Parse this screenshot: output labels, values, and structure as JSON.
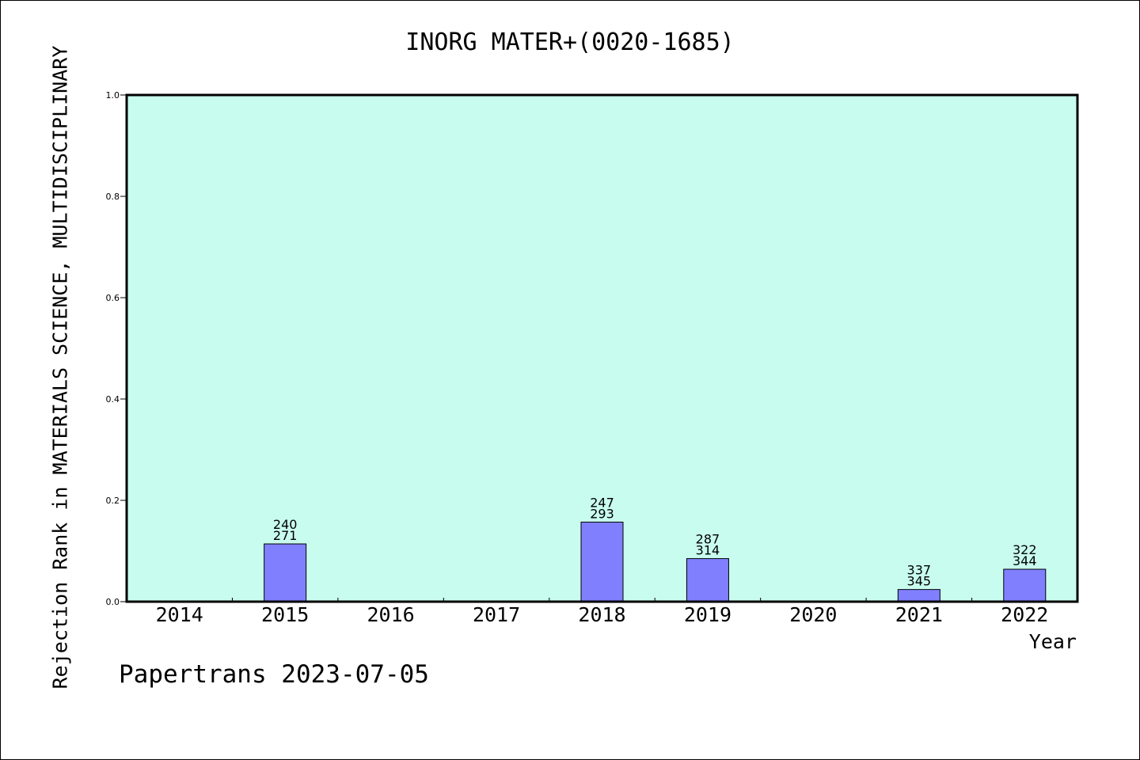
{
  "chart_data": {
    "type": "bar",
    "title": "INORG MATER+(0020-1685)",
    "xlabel": "Year",
    "ylabel": "Rejection Rank in MATERIALS SCIENCE, MULTIDISCIPLINARY",
    "categories": [
      "2014",
      "2015",
      "2016",
      "2017",
      "2018",
      "2019",
      "2020",
      "2021",
      "2022"
    ],
    "values": [
      0,
      0.114,
      0,
      0,
      0.157,
      0.085,
      0,
      0.024,
      0.064
    ],
    "labels_top": [
      "",
      "240",
      "",
      "",
      "247",
      "287",
      "",
      "337",
      "322"
    ],
    "labels_bottom": [
      "",
      "271",
      "",
      "",
      "293",
      "314",
      "",
      "345",
      "344"
    ],
    "ylim": [
      0,
      1.0
    ],
    "yticks": [
      "0.0",
      "0.2",
      "0.4",
      "0.6",
      "0.8",
      "1.0"
    ],
    "grid": false,
    "colors": {
      "bar": "#8080ff",
      "plot_bg": "#c8fcee",
      "axis": "#000000"
    }
  },
  "footer": "Papertrans 2023-07-05"
}
